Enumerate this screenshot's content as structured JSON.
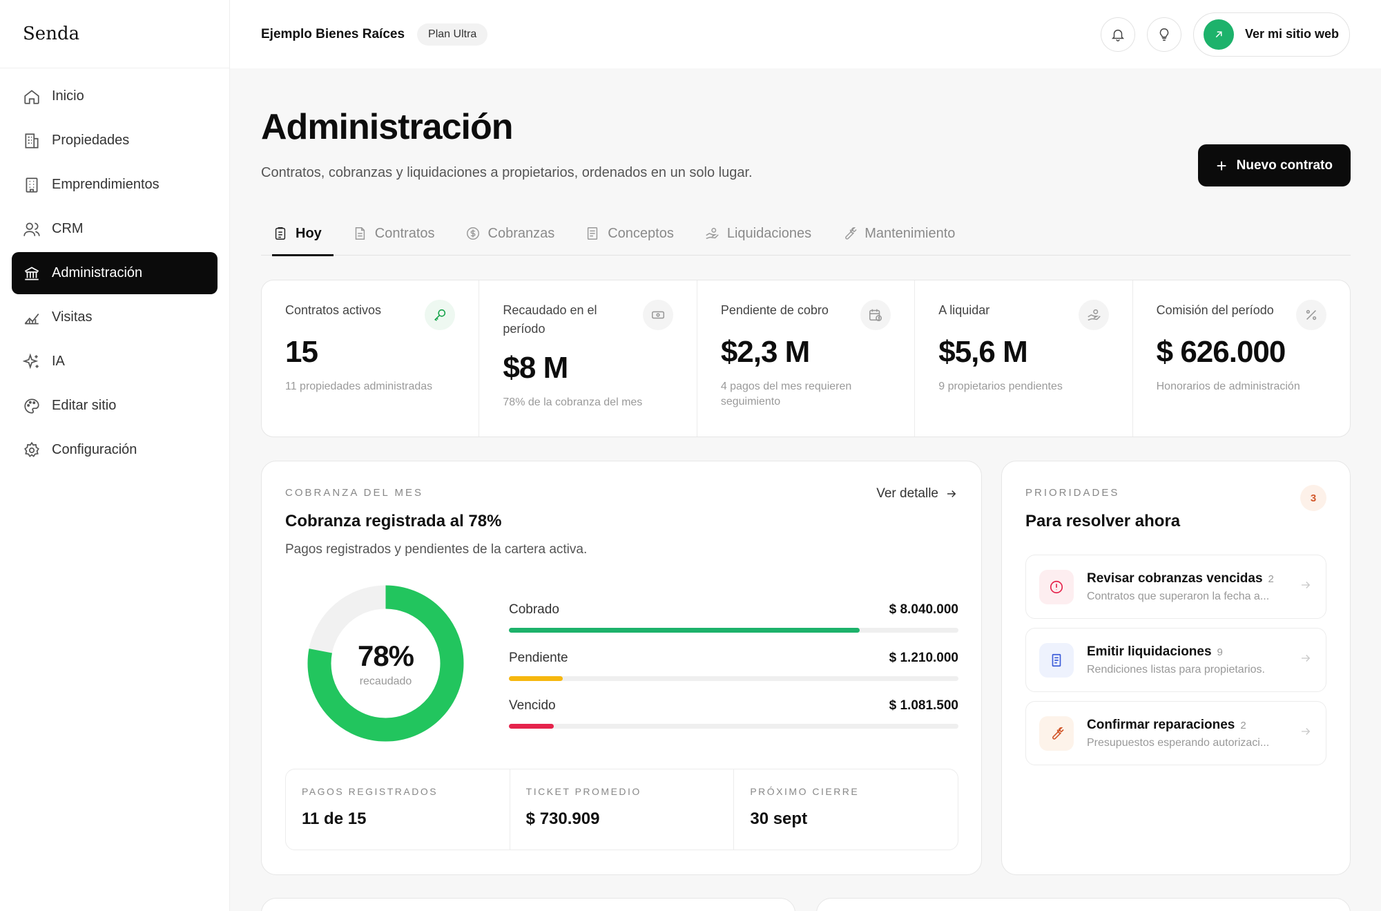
{
  "brand": "Senda",
  "sidebar": {
    "items": [
      {
        "label": "Inicio",
        "icon": "home-icon"
      },
      {
        "label": "Propiedades",
        "icon": "building-icon"
      },
      {
        "label": "Emprendimientos",
        "icon": "tower-icon"
      },
      {
        "label": "CRM",
        "icon": "users-icon"
      },
      {
        "label": "Administración",
        "icon": "bank-icon",
        "active": true
      },
      {
        "label": "Visitas",
        "icon": "chart-line-icon"
      },
      {
        "label": "IA",
        "icon": "sparkles-icon"
      },
      {
        "label": "Editar sitio",
        "icon": "palette-icon"
      },
      {
        "label": "Configuración",
        "icon": "gear-icon"
      }
    ]
  },
  "header": {
    "company": "Ejemplo Bienes Raíces",
    "plan": "Plan Ultra",
    "site_button": "Ver mi sitio web"
  },
  "page": {
    "title": "Administración",
    "subtitle": "Contratos, cobranzas y liquidaciones a propietarios, ordenados en un solo lugar.",
    "new_button": "Nuevo contrato"
  },
  "tabs": [
    {
      "label": "Hoy",
      "icon": "clipboard-icon",
      "active": true
    },
    {
      "label": "Contratos",
      "icon": "document-icon"
    },
    {
      "label": "Cobranzas",
      "icon": "dollar-circle-icon"
    },
    {
      "label": "Conceptos",
      "icon": "list-document-icon"
    },
    {
      "label": "Liquidaciones",
      "icon": "hand-coins-icon"
    },
    {
      "label": "Mantenimiento",
      "icon": "wrench-icon"
    }
  ],
  "kpis": [
    {
      "label": "Contratos activos",
      "value": "15",
      "note": "11 propiedades administradas",
      "icon": "key-icon"
    },
    {
      "label": "Recaudado en el período",
      "value": "$8 M",
      "note": "78% de la cobranza del mes",
      "icon": "cash-icon"
    },
    {
      "label": "Pendiente de cobro",
      "value": "$2,3 M",
      "note": "4 pagos del mes requieren seguimiento",
      "icon": "calendar-clock-icon"
    },
    {
      "label": "A liquidar",
      "value": "$5,6 M",
      "note": "9 propietarios pendientes",
      "icon": "hand-coins-icon"
    },
    {
      "label": "Comisión del período",
      "value": "$ 626.000",
      "note": "Honorarios de administración",
      "icon": "percent-icon"
    }
  ],
  "cobranza": {
    "eyebrow": "COBRANZA DEL MES",
    "title": "Cobranza registrada al 78%",
    "subtitle": "Pagos registrados y pendientes de la cartera activa.",
    "link": "Ver detalle",
    "donut_pct": "78%",
    "donut_pct_value": 0.78,
    "donut_label": "recaudado",
    "bars": [
      {
        "name": "Cobrado",
        "amount": "$ 8.040.000",
        "fraction": 0.78,
        "color": "#1db26b"
      },
      {
        "name": "Pendiente",
        "amount": "$ 1.210.000",
        "fraction": 0.12,
        "color": "#f6b70f"
      },
      {
        "name": "Vencido",
        "amount": "$ 1.081.500",
        "fraction": 0.1,
        "color": "#e5234b"
      }
    ],
    "stats": [
      {
        "label": "PAGOS REGISTRADOS",
        "value": "11 de 15"
      },
      {
        "label": "TICKET PROMEDIO",
        "value": "$ 730.909"
      },
      {
        "label": "PRÓXIMO CIERRE",
        "value": "30 sept"
      }
    ]
  },
  "prioridades": {
    "eyebrow": "PRIORIDADES",
    "title": "Para resolver ahora",
    "count": "3",
    "tasks": [
      {
        "title": "Revisar cobranzas vencidas",
        "count": "2",
        "desc": "Contratos que superaron la fecha a...",
        "icon": "alert-circle-icon"
      },
      {
        "title": "Emitir liquidaciones",
        "count": "9",
        "desc": "Rendiciones listas para propietarios.",
        "icon": "document-icon"
      },
      {
        "title": "Confirmar reparaciones",
        "count": "2",
        "desc": "Presupuestos esperando autorizaci...",
        "icon": "wrench-icon"
      }
    ]
  },
  "colors": {
    "accent": "#1db26b",
    "donut_green": "#22c55e",
    "dark": "#0b0b0b",
    "danger": "#e5234b",
    "warning": "#f6b70f"
  }
}
